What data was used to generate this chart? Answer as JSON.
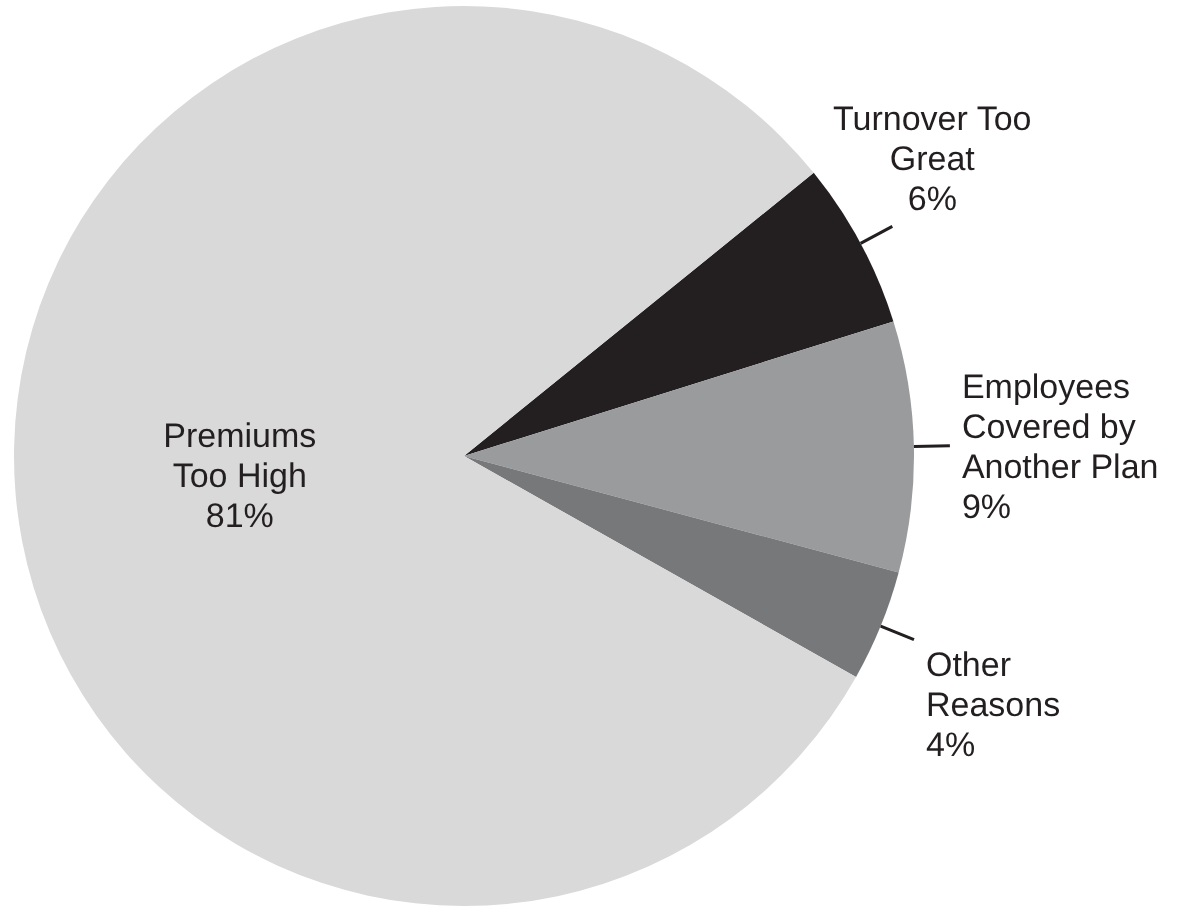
{
  "chart_data": {
    "type": "pie",
    "categories": [
      "Turnover Too Great",
      "Employees Covered by Another Plan",
      "Other Reasons",
      "Premiums Too High"
    ],
    "values": [
      6,
      9,
      4,
      81
    ],
    "colors": [
      "#231f20",
      "#9a9b9d",
      "#77787a",
      "#d9d9d9"
    ],
    "value_labels": [
      "6%",
      "9%",
      "4%",
      "81%"
    ]
  }
}
